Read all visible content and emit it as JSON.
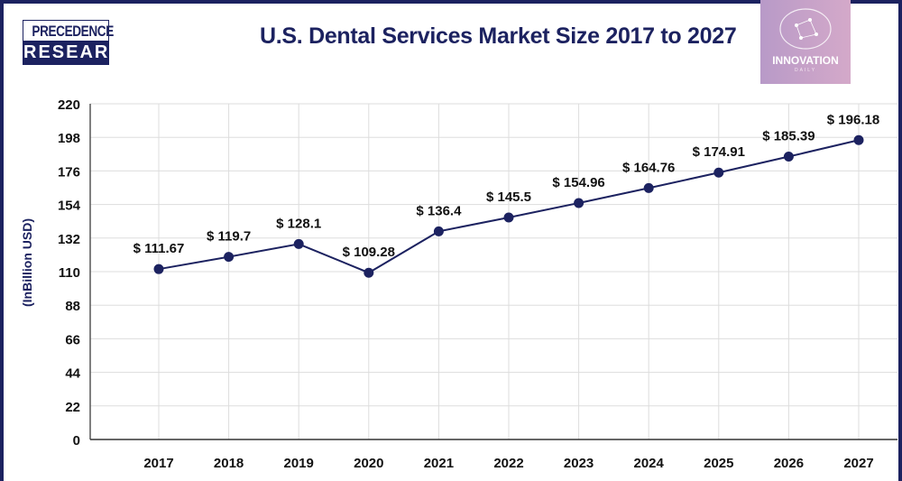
{
  "header": {
    "logo_top": "PRECEDENCE",
    "logo_bottom": "RESEARCH",
    "watermark": "INNOVATION",
    "watermark_sub": "DAILY"
  },
  "chart_data": {
    "type": "line",
    "title": "U.S. Dental Services Market Size 2017 to 2027",
    "xlabel": "",
    "ylabel": "(InBillion USD)",
    "categories": [
      "2017",
      "2018",
      "2019",
      "2020",
      "2021",
      "2022",
      "2023",
      "2024",
      "2025",
      "2026",
      "2027"
    ],
    "values": [
      111.67,
      119.7,
      128.1,
      109.28,
      136.4,
      145.5,
      154.96,
      164.76,
      174.91,
      185.39,
      196.18
    ],
    "data_labels": [
      "$ 111.67",
      "$ 119.7",
      "$ 128.1",
      "$ 109.28",
      "$ 136.4",
      "$ 145.5",
      "$ 154.96",
      "$ 164.76",
      "$ 174.91",
      "$ 185.39",
      "$ 196.18"
    ],
    "yticks": [
      0,
      22,
      44,
      66,
      88,
      110,
      132,
      154,
      176,
      198,
      220
    ],
    "ylim": [
      0,
      220
    ],
    "grid": true,
    "colors": {
      "line": "#1c2260",
      "grid": "#dddddd"
    }
  }
}
